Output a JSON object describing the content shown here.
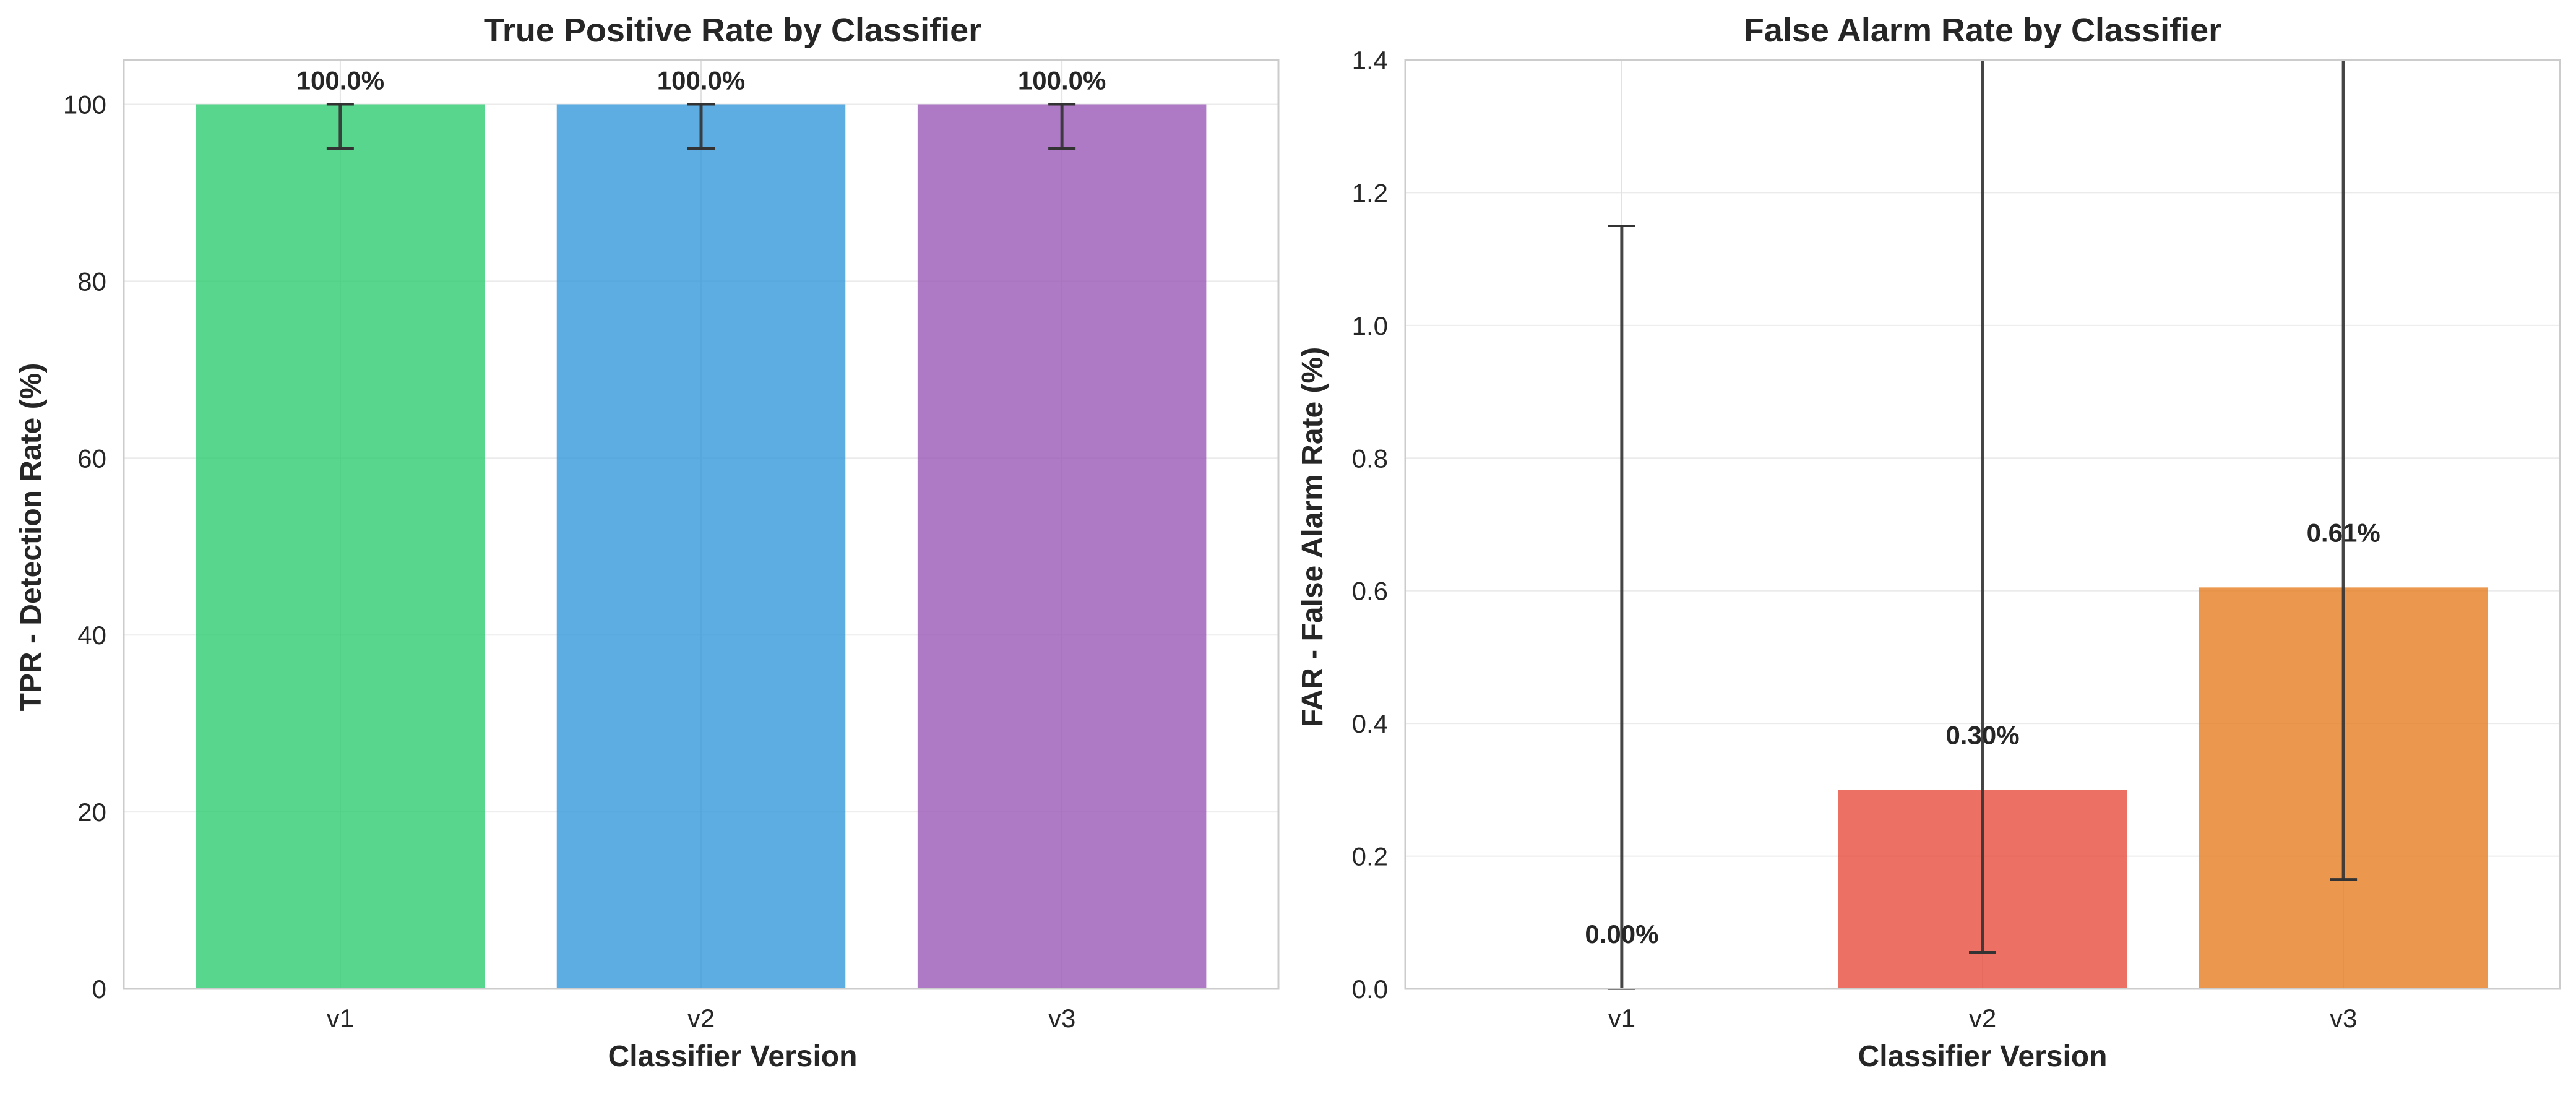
{
  "charts": [
    {
      "type": "bar",
      "title": "True Positive Rate by Classifier",
      "xlabel": "Classifier Version",
      "ylabel": "TPR - Detection Rate (%)",
      "categories": [
        "v1",
        "v2",
        "v3"
      ],
      "values": [
        100.0,
        100.0,
        100.0
      ],
      "value_labels": [
        "100.0%",
        "100.0%",
        "100.0%"
      ],
      "error_low": [
        95.0,
        95.0,
        95.0
      ],
      "error_high": [
        100.0,
        100.0,
        100.0
      ],
      "colors": [
        "#2ecc71",
        "#3498db",
        "#9b59b6"
      ],
      "ylim": [
        0,
        105
      ],
      "yticks": [
        0,
        20,
        40,
        60,
        80,
        100
      ],
      "ytick_labels": [
        "0",
        "20",
        "40",
        "60",
        "80",
        "100"
      ],
      "grid": true
    },
    {
      "type": "bar",
      "title": "False Alarm Rate by Classifier",
      "xlabel": "Classifier Version",
      "ylabel": "FAR - False Alarm Rate (%)",
      "categories": [
        "v1",
        "v2",
        "v3"
      ],
      "values": [
        0.0,
        0.3,
        0.605
      ],
      "value_labels": [
        "0.00%",
        "0.30%",
        "0.61%"
      ],
      "error_low": [
        0.0,
        0.055,
        0.165
      ],
      "error_high": [
        1.15,
        1.6,
        1.6
      ],
      "colors": [
        "#95a5a6",
        "#e74c3c",
        "#e67e22"
      ],
      "ylim": [
        0,
        1.4
      ],
      "yticks": [
        0,
        0.2,
        0.4,
        0.6,
        0.8,
        1.0,
        1.2,
        1.4
      ],
      "ytick_labels": [
        "0.0",
        "0.2",
        "0.4",
        "0.6",
        "0.8",
        "1.0",
        "1.2",
        "1.4"
      ],
      "grid": true
    }
  ]
}
